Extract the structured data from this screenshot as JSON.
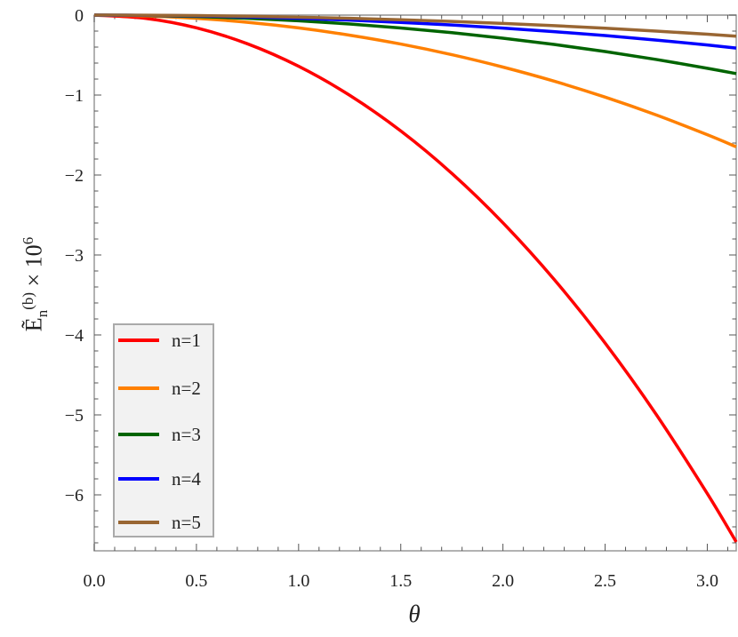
{
  "chart_data": {
    "type": "line",
    "xlabel": "θ",
    "ylabel": {
      "base": "Ẽ",
      "sub": "n",
      "sup": "(b)",
      "times": " × 10",
      "exp": "6"
    },
    "xlim": [
      0,
      3.14159
    ],
    "ylim": [
      -6.7,
      0
    ],
    "x_ticks": [
      "0.0",
      "0.5",
      "1.0",
      "1.5",
      "2.0",
      "2.5",
      "3.0"
    ],
    "y_ticks": [
      "0",
      "−1",
      "−2",
      "−3",
      "−4",
      "−5",
      "−6"
    ],
    "grid": false,
    "legend_placement": "bottom-left",
    "x": [
      0,
      0.25,
      0.5,
      0.75,
      1.0,
      1.25,
      1.5,
      1.75,
      2.0,
      2.25,
      2.5,
      2.75,
      3.0,
      3.14159
    ],
    "series": [
      {
        "name": "n=1",
        "color": "#ff0000",
        "values": [
          0,
          -0.04,
          -0.159,
          -0.359,
          -0.64,
          -1.003,
          -1.449,
          -1.98,
          -2.598,
          -3.304,
          -4.102,
          -4.994,
          -5.984,
          -6.589
        ]
      },
      {
        "name": "n=2",
        "color": "#ff8000",
        "values": [
          0,
          -0.01,
          -0.04,
          -0.09,
          -0.16,
          -0.251,
          -0.362,
          -0.495,
          -0.65,
          -0.826,
          -1.026,
          -1.249,
          -1.496,
          -1.647
        ]
      },
      {
        "name": "n=3",
        "color": "#006400",
        "values": [
          0,
          -0.004,
          -0.018,
          -0.04,
          -0.071,
          -0.111,
          -0.161,
          -0.22,
          -0.289,
          -0.367,
          -0.456,
          -0.555,
          -0.665,
          -0.732
        ]
      },
      {
        "name": "n=4",
        "color": "#0000ff",
        "values": [
          0,
          -0.003,
          -0.01,
          -0.022,
          -0.04,
          -0.063,
          -0.091,
          -0.124,
          -0.162,
          -0.207,
          -0.256,
          -0.312,
          -0.374,
          -0.412
        ]
      },
      {
        "name": "n=5",
        "color": "#996633",
        "values": [
          0,
          -0.002,
          -0.006,
          -0.014,
          -0.026,
          -0.04,
          -0.058,
          -0.079,
          -0.104,
          -0.132,
          -0.164,
          -0.2,
          -0.239,
          -0.264
        ]
      }
    ]
  }
}
